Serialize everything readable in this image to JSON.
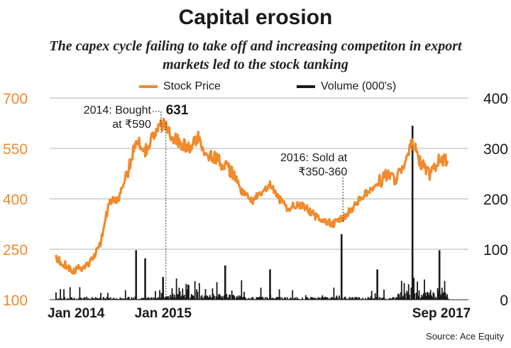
{
  "title": "Capital erosion",
  "subtitle_line1": "The capex cycle failing to take off and increasing competiton in export",
  "subtitle_line2": "markets led to the stock tanking",
  "source": "Source: Ace Equity",
  "colors": {
    "price": "#f08a2c",
    "volume": "#1a1a1a",
    "grid": "#888888",
    "left_axis_text": "#f08a2c"
  },
  "chart_data": {
    "type": "line",
    "series": [
      {
        "name": "Stock Price",
        "color": "#f08a2c",
        "axis": "left"
      },
      {
        "name": "Volume (000's)",
        "color": "#1a1a1a",
        "axis": "right",
        "type": "bar"
      }
    ],
    "x_ticks": [
      "Jan 2014",
      "Jan 2015",
      "Sep 2017"
    ],
    "left_axis": {
      "ticks": [
        100,
        250,
        400,
        550,
        700
      ],
      "ylim": [
        100,
        700
      ]
    },
    "right_axis": {
      "ticks": [
        0,
        100,
        200,
        300,
        400
      ],
      "ylim": [
        0,
        400
      ]
    },
    "grid": true,
    "legend_position": "top",
    "price_keypoints": [
      [
        "2014-01",
        225
      ],
      [
        "2014-02",
        205
      ],
      [
        "2014-03",
        188
      ],
      [
        "2014-04",
        195
      ],
      [
        "2014-05",
        215
      ],
      [
        "2014-06",
        270
      ],
      [
        "2014-07",
        390
      ],
      [
        "2014-08",
        400
      ],
      [
        "2014-09",
        470
      ],
      [
        "2014-10",
        580
      ],
      [
        "2014-11",
        545
      ],
      [
        "2014-12",
        590
      ],
      [
        "2015-01",
        625
      ],
      [
        "2015-02",
        590
      ],
      [
        "2015-03",
        565
      ],
      [
        "2015-04",
        550
      ],
      [
        "2015-05",
        580
      ],
      [
        "2015-06",
        535
      ],
      [
        "2015-07",
        520
      ],
      [
        "2015-08",
        495
      ],
      [
        "2015-09",
        470
      ],
      [
        "2015-10",
        415
      ],
      [
        "2015-11",
        395
      ],
      [
        "2015-12",
        415
      ],
      [
        "2016-01",
        440
      ],
      [
        "2016-02",
        400
      ],
      [
        "2016-03",
        370
      ],
      [
        "2016-04",
        385
      ],
      [
        "2016-05",
        375
      ],
      [
        "2016-06",
        350
      ],
      [
        "2016-07",
        335
      ],
      [
        "2016-08",
        325
      ],
      [
        "2016-09",
        340
      ],
      [
        "2016-10",
        365
      ],
      [
        "2016-11",
        400
      ],
      [
        "2016-12",
        420
      ],
      [
        "2017-01",
        445
      ],
      [
        "2017-02",
        470
      ],
      [
        "2017-03",
        460
      ],
      [
        "2017-04",
        490
      ],
      [
        "2017-05",
        570
      ],
      [
        "2017-06",
        500
      ],
      [
        "2017-07",
        470
      ],
      [
        "2017-08",
        520
      ],
      [
        "2017-09",
        510
      ]
    ],
    "volume_spikes": [
      [
        "2014-10",
        98
      ],
      [
        "2014-11",
        82
      ],
      [
        "2015-01",
        45
      ],
      [
        "2015-08",
        68
      ],
      [
        "2016-01",
        60
      ],
      [
        "2016-09",
        130
      ],
      [
        "2017-01",
        60
      ],
      [
        "2017-05",
        345
      ],
      [
        "2017-08",
        98
      ]
    ],
    "annotations": [
      {
        "text_line1": "2014: Bought",
        "text_line2": "at ₹590",
        "date": "2014-12"
      },
      {
        "text_line1": "631",
        "date": "2015-01"
      },
      {
        "text_line1": "2016: Sold at",
        "text_line2": "₹350-360",
        "date": "2016-09"
      }
    ]
  }
}
